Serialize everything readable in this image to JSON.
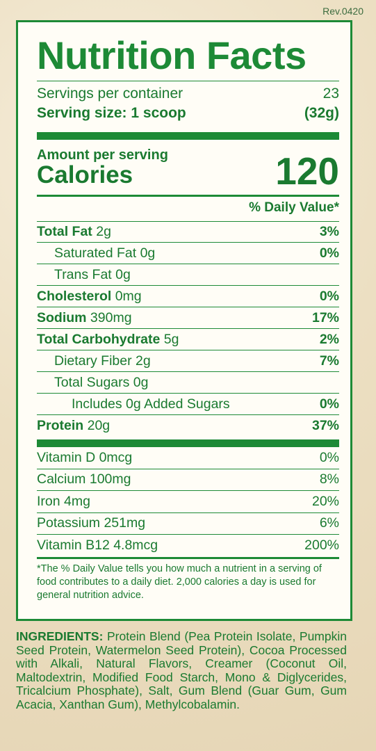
{
  "revision": "Rev.0420",
  "title": "Nutrition Facts",
  "servings": {
    "per_container_label": "Servings per container",
    "per_container_value": "23",
    "size_label": "Serving size: 1 scoop",
    "size_value": "(32g)"
  },
  "calories": {
    "amount_label": "Amount per serving",
    "label": "Calories",
    "value": "120"
  },
  "daily_value_header": "% Daily Value*",
  "nutrients": [
    {
      "name": "Total Fat",
      "amount": " 2g",
      "dv": "3%"
    },
    {
      "name": "Saturated Fat 0g",
      "amount": "",
      "dv": "0%"
    },
    {
      "name": "Trans Fat 0g",
      "amount": "",
      "dv": ""
    },
    {
      "name": "Cholesterol",
      "amount": " 0mg",
      "dv": "0%"
    },
    {
      "name": "Sodium",
      "amount": " 390mg",
      "dv": "17%"
    },
    {
      "name": "Total Carbohydrate",
      "amount": " 5g",
      "dv": "2%"
    },
    {
      "name": "Dietary Fiber 2g",
      "amount": "",
      "dv": "7%"
    },
    {
      "name": "Total Sugars 0g",
      "amount": "",
      "dv": ""
    },
    {
      "name": "Includes 0g Added Sugars",
      "amount": "",
      "dv": "0%"
    },
    {
      "name": "Protein",
      "amount": " 20g",
      "dv": "37%"
    }
  ],
  "vitamins": [
    {
      "name": "Vitamin D 0mcg",
      "dv": "0%"
    },
    {
      "name": "Calcium 100mg",
      "dv": "8%"
    },
    {
      "name": "Iron 4mg",
      "dv": "20%"
    },
    {
      "name": "Potassium 251mg",
      "dv": "6%"
    },
    {
      "name": "Vitamin B12 4.8mcg",
      "dv": "200%"
    }
  ],
  "footnote": "*The % Daily Value tells you how much a nutrient in a serving of food contributes to a daily diet. 2,000 calories a day is used for general nutrition advice.",
  "ingredients": {
    "label": "INGREDIENTS:",
    "text": " Protein Blend (Pea Protein Isolate, Pumpkin Seed Protein, Watermelon Seed Protein), Cocoa Processed with Alkali, Natural Flavors, Creamer (Coconut Oil, Maltodextrin, Modified Food Starch, Mono & Diglycerides, Tricalcium Phosphate), Salt, Gum Blend (Guar Gum, Gum Acacia, Xanthan Gum), Methylcobalamin."
  },
  "colors": {
    "label_green": "#1d8a36",
    "background": "#efe3c8"
  }
}
